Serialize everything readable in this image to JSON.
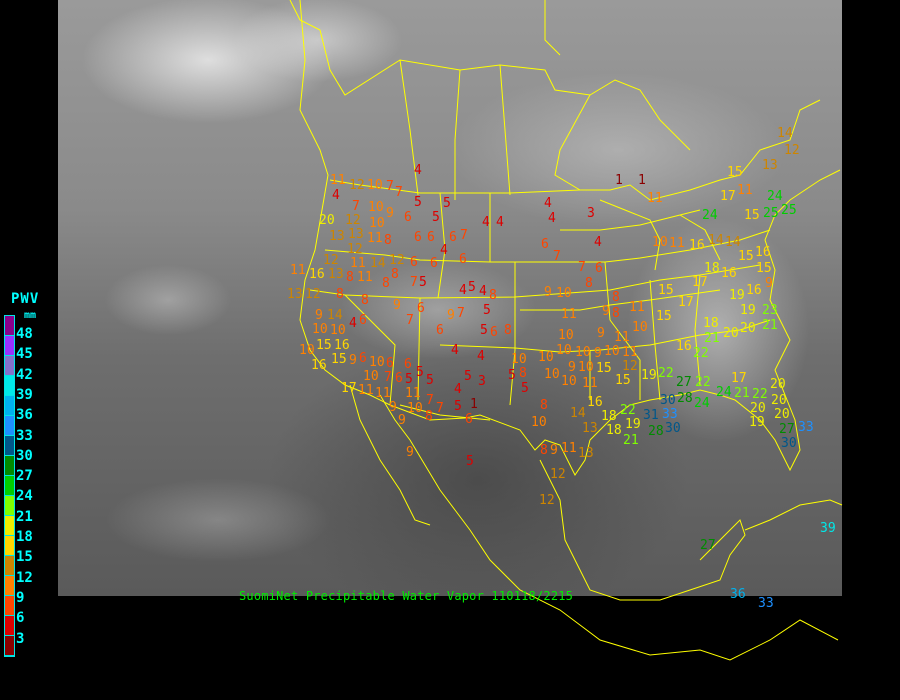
{
  "caption": "SuomiNet Precipitable Water Vapor 110118/2215",
  "legend": {
    "title": "PWV",
    "unit": "mm",
    "labels": [
      "48",
      "45",
      "42",
      "39",
      "36",
      "33",
      "30",
      "27",
      "24",
      "21",
      "18",
      "15",
      "12",
      "9",
      "6",
      "3"
    ],
    "colors": [
      "#8b008b",
      "#9b30ff",
      "#8470cc",
      "#00e8e8",
      "#00b2ee",
      "#1e90ff",
      "#00578a",
      "#008b00",
      "#00cd00",
      "#7fff00",
      "#eeee00",
      "#ffd700",
      "#cd8500",
      "#ff8000",
      "#ff4500",
      "#dd0000",
      "#8b0000"
    ]
  },
  "colors": {
    "borders": "#ffff00",
    "background": "#000000",
    "caption": "#00ee00",
    "legend_text": "#00ffff"
  },
  "stations": [
    4,
    11,
    4,
    12,
    10,
    7,
    7,
    5,
    5,
    7,
    10,
    9,
    10,
    20,
    12,
    13,
    6,
    5,
    4,
    4,
    13,
    11,
    12,
    8,
    6,
    6,
    6,
    7,
    4,
    6,
    11,
    12,
    14,
    12,
    8,
    6,
    6,
    11,
    8,
    7,
    5,
    4,
    5,
    4,
    8,
    5,
    11,
    16,
    13,
    8,
    13,
    12,
    8,
    8,
    9,
    6,
    9,
    7,
    9,
    7,
    6,
    5,
    6,
    8,
    10,
    10,
    14,
    4,
    6,
    15,
    16,
    10,
    15,
    9,
    6,
    10,
    16,
    6,
    6,
    4,
    4,
    7,
    6,
    5,
    5,
    5,
    5,
    3,
    5,
    8,
    4,
    17,
    11,
    11,
    10,
    11,
    10,
    7,
    9,
    9,
    8,
    7,
    5,
    1,
    6,
    9,
    5,
    4,
    4,
    3,
    4,
    6,
    7,
    6,
    7,
    8,
    9,
    10,
    8,
    9,
    8,
    11,
    11,
    10,
    9,
    10,
    10,
    10,
    10,
    9,
    10,
    10,
    10,
    9,
    11,
    5,
    10,
    8,
    10,
    14,
    13,
    8,
    9,
    11,
    12,
    12,
    13,
    1,
    1,
    11,
    17,
    11,
    15,
    24,
    15,
    24,
    25,
    25,
    10,
    11,
    16,
    14,
    14,
    15,
    16,
    15,
    18,
    17,
    16,
    16,
    19,
    9,
    15,
    17,
    15,
    19,
    20,
    23,
    21,
    20,
    18,
    21,
    16,
    22,
    11,
    10,
    11,
    12,
    15,
    19,
    15,
    16,
    18,
    18,
    19,
    22,
    22,
    27,
    22,
    30,
    28,
    24,
    24,
    21,
    17,
    22,
    20,
    20,
    20,
    20,
    31,
    33,
    30,
    28,
    19,
    27,
    33,
    30,
    21,
    27,
    39,
    36,
    33,
    14,
    13,
    12
  ]
}
